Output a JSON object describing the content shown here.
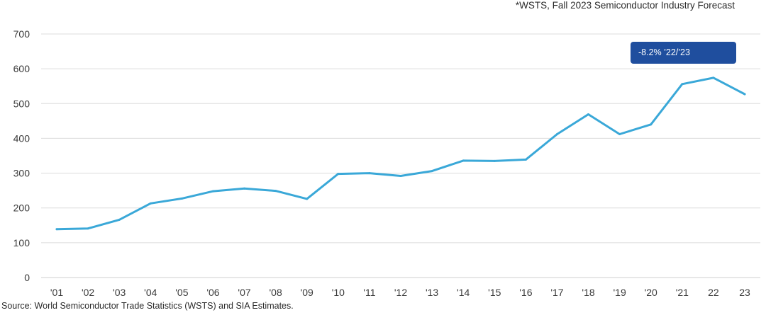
{
  "note": "*WSTS, Fall 2023 Semiconductor Industry Forecast",
  "source": "Source: World Semiconductor Trade Statistics (WSTS) and SIA Estimates.",
  "callout": {
    "text": "-8.2% ’22/’23",
    "color": "#1f4e9e"
  },
  "chart_data": {
    "type": "line",
    "title": "",
    "xlabel": "",
    "ylabel": "",
    "ylim": [
      0,
      700
    ],
    "yticks": [
      0,
      100,
      200,
      300,
      400,
      500,
      600,
      700
    ],
    "grid": true,
    "legend": "none",
    "line_color": "#3aa8d8",
    "categories": [
      "'01",
      "'02",
      "'03",
      "'04",
      "'05",
      "'06",
      "'07",
      "'08",
      "'09",
      "'10",
      "'11",
      "'12",
      "'13",
      "'14",
      "'15",
      "'16",
      "'17",
      "'18",
      "'19",
      "'20",
      "'21",
      "22",
      "23"
    ],
    "series": [
      {
        "values": [
          139,
          141,
          166,
          213,
          227,
          248,
          256,
          249,
          226,
          298,
          300,
          292,
          306,
          336,
          335,
          339,
          412,
          469,
          412,
          440,
          556,
          574,
          527
        ]
      }
    ]
  }
}
